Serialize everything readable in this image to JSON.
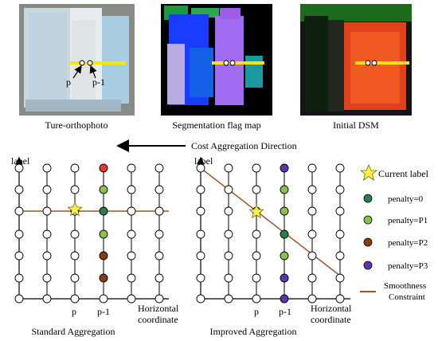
{
  "panels": [
    {
      "caption": "Ture-orthophoto",
      "p_label": "p",
      "p1_label": "p-1"
    },
    {
      "caption": "Segmentation flag  map"
    },
    {
      "caption": "Initial DSM"
    }
  ],
  "direction_label": "Cost Aggregation Direction",
  "graphs": [
    {
      "y_label": "label",
      "x_label_line1": "Horizontal",
      "x_label_line2": "coordinate",
      "p_label": "p",
      "p1_label": "p-1",
      "caption": "Standard Aggregation",
      "column_p1_colors": [
        "#8a3b12",
        "#8a3b12",
        "#8bc34a",
        "#2e7d4f",
        "#8bc34a",
        "#e53935"
      ],
      "smoothness_line_color": "#a0522d"
    },
    {
      "y_label": "label",
      "x_label_line1": "Horizontal",
      "x_label_line2": "coordinate",
      "p_label": "p",
      "p1_label": "p-1",
      "caption": "Improved Aggregation",
      "column_p1_colors": [
        "#5e35b1",
        "#5e35b1",
        "#8bc34a",
        "#2e7d4f",
        "#8bc34a",
        "#8bc34a",
        "#5e35b1"
      ],
      "smoothness_line_color": "#a0522d"
    }
  ],
  "legend": {
    "current_label": "Current label",
    "items": [
      {
        "label": "penalty=0",
        "color": "#2e7d4f"
      },
      {
        "label": "penalty=P1",
        "color": "#8bc34a"
      },
      {
        "label": "penalty=P2",
        "color": "#8a3b12"
      },
      {
        "label": "penalty=P3",
        "color": "#5e35b1"
      }
    ],
    "line_label_1": "Smoothness",
    "line_label_2": "Constraint",
    "line_color": "#a0522d"
  }
}
